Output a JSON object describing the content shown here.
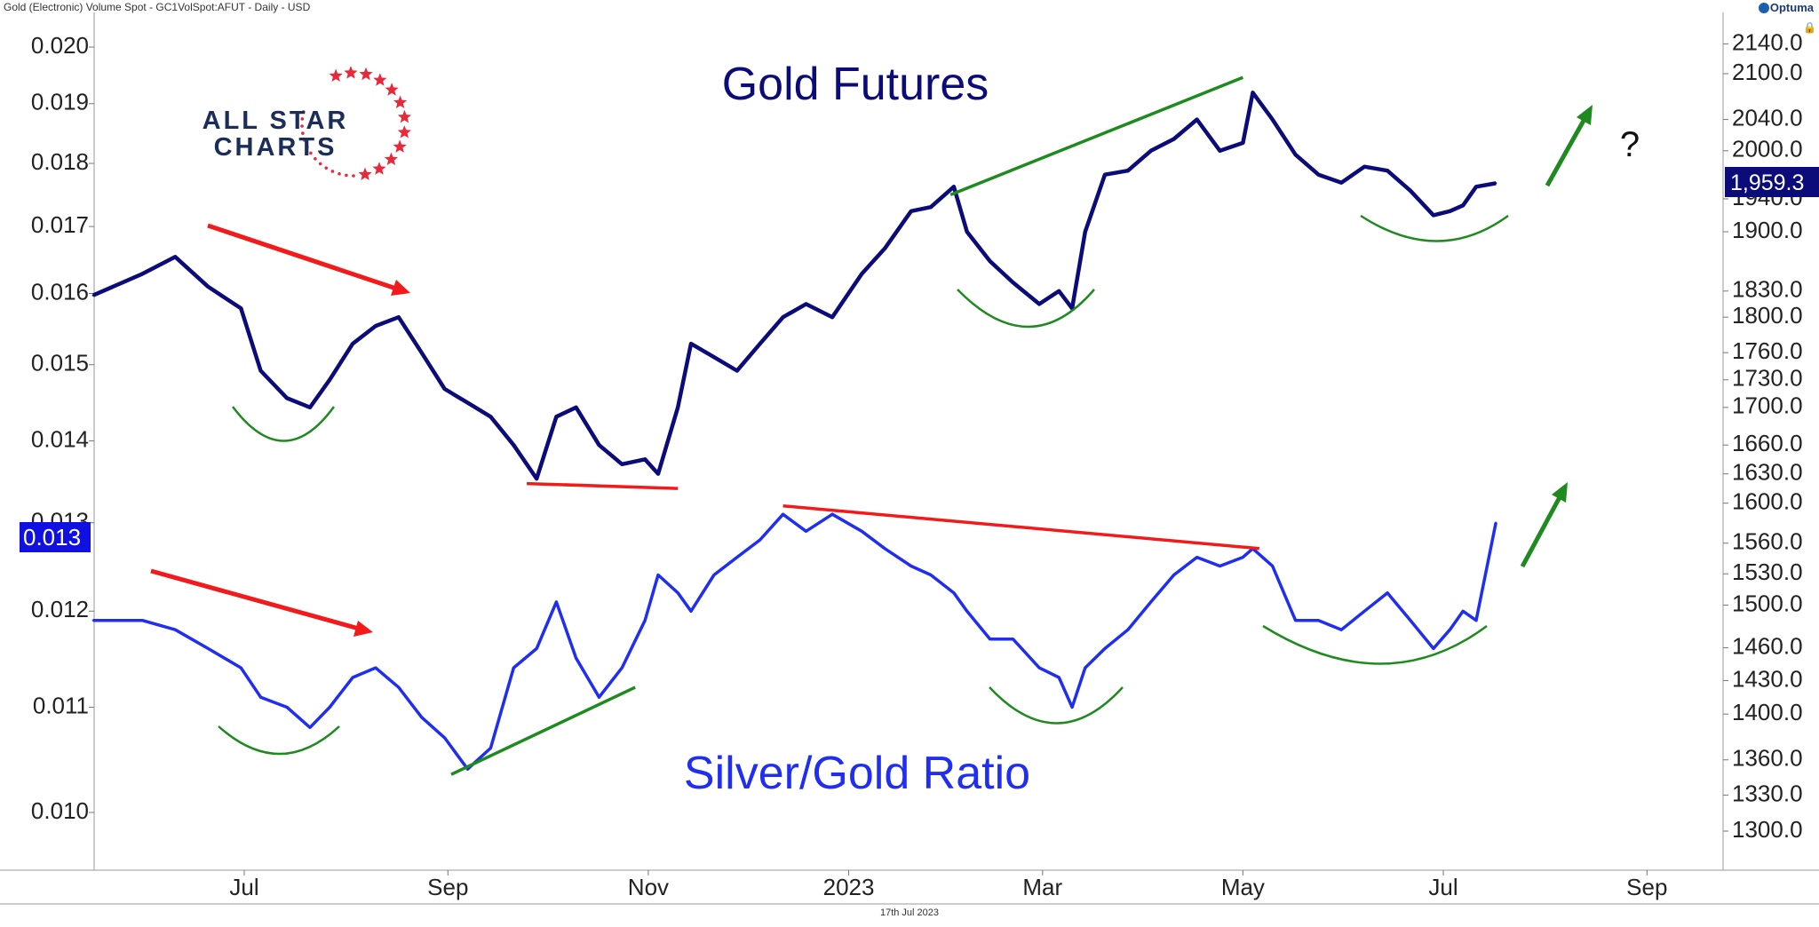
{
  "header": {
    "title": "Gold (Electronic) Volume Spot - GC1VolSpot:AFUT - Daily - USD",
    "brand": "Optuma",
    "footer_date": "17th Jul 2023"
  },
  "logo": {
    "line1": "ALL STAR",
    "line2": "CHARTS"
  },
  "colors": {
    "gold_series": "#0b0b7a",
    "ratio_series": "#1f2ef0",
    "trend_red": "#f21a1a",
    "trend_green": "#1f8a1f",
    "price_label_bg": "#0b0b7a",
    "ratio_label_bg": "#1010e0"
  },
  "annotations": {
    "gold_title": "Gold Futures",
    "ratio_title": "Silver/Gold Ratio",
    "question": "?"
  },
  "chart_data": {
    "type": "line",
    "x_axis": {
      "tick_labels": [
        "Jul",
        "Sep",
        "Nov",
        "2023",
        "Mar",
        "May",
        "Jul",
        "Sep"
      ],
      "range": [
        "2022-05-15",
        "2023-09-20"
      ]
    },
    "left_axis": {
      "scale": "log",
      "ticks": [
        0.02,
        0.019,
        0.018,
        0.017,
        0.016,
        0.015,
        0.014,
        0.013,
        0.012,
        0.011,
        0.01
      ],
      "tick_labels": [
        "0.020",
        "0.019",
        "0.018",
        "0.017",
        "0.016",
        "0.015",
        "0.014",
        "0.013",
        "0.012",
        "0.011",
        "0.010"
      ]
    },
    "right_axis": {
      "scale": "log",
      "ticks": [
        2140,
        2100,
        2040,
        2000,
        1940,
        1900,
        1830,
        1800,
        1760,
        1730,
        1700,
        1660,
        1630,
        1600,
        1560,
        1530,
        1500,
        1460,
        1430,
        1400,
        1360,
        1330,
        1300
      ],
      "tick_labels": [
        "2140.0",
        "2100.0",
        "2040.0",
        "2000.0",
        "1940.0",
        "1900.0",
        "1830.0",
        "1800.0",
        "1760.0",
        "1730.0",
        "1700.0",
        "1660.0",
        "1630.0",
        "1600.0",
        "1560.0",
        "1530.0",
        "1500.0",
        "1460.0",
        "1430.0",
        "1400.0",
        "1360.0",
        "1330.0",
        "1300.0"
      ]
    },
    "series": [
      {
        "name": "Gold Futures",
        "axis": "right",
        "points": [
          [
            "2022-05-16",
            1825
          ],
          [
            "2022-05-31",
            1850
          ],
          [
            "2022-06-10",
            1870
          ],
          [
            "2022-06-20",
            1835
          ],
          [
            "2022-06-30",
            1810
          ],
          [
            "2022-07-06",
            1740
          ],
          [
            "2022-07-14",
            1710
          ],
          [
            "2022-07-21",
            1700
          ],
          [
            "2022-07-27",
            1730
          ],
          [
            "2022-08-03",
            1770
          ],
          [
            "2022-08-10",
            1790
          ],
          [
            "2022-08-17",
            1800
          ],
          [
            "2022-08-24",
            1760
          ],
          [
            "2022-08-31",
            1720
          ],
          [
            "2022-09-07",
            1705
          ],
          [
            "2022-09-14",
            1690
          ],
          [
            "2022-09-21",
            1660
          ],
          [
            "2022-09-28",
            1625
          ],
          [
            "2022-10-04",
            1690
          ],
          [
            "2022-10-10",
            1700
          ],
          [
            "2022-10-17",
            1660
          ],
          [
            "2022-10-24",
            1640
          ],
          [
            "2022-10-31",
            1645
          ],
          [
            "2022-11-04",
            1630
          ],
          [
            "2022-11-10",
            1700
          ],
          [
            "2022-11-14",
            1770
          ],
          [
            "2022-11-21",
            1755
          ],
          [
            "2022-11-28",
            1740
          ],
          [
            "2022-12-05",
            1770
          ],
          [
            "2022-12-12",
            1800
          ],
          [
            "2022-12-19",
            1815
          ],
          [
            "2022-12-27",
            1800
          ],
          [
            "2023-01-05",
            1850
          ],
          [
            "2023-01-12",
            1880
          ],
          [
            "2023-01-20",
            1925
          ],
          [
            "2023-01-26",
            1930
          ],
          [
            "2023-02-02",
            1955
          ],
          [
            "2023-02-06",
            1900
          ],
          [
            "2023-02-13",
            1865
          ],
          [
            "2023-02-20",
            1840
          ],
          [
            "2023-02-28",
            1815
          ],
          [
            "2023-03-06",
            1830
          ],
          [
            "2023-03-10",
            1810
          ],
          [
            "2023-03-14",
            1900
          ],
          [
            "2023-03-20",
            1970
          ],
          [
            "2023-03-27",
            1975
          ],
          [
            "2023-04-03",
            2000
          ],
          [
            "2023-04-10",
            2015
          ],
          [
            "2023-04-17",
            2040
          ],
          [
            "2023-04-24",
            2000
          ],
          [
            "2023-05-01",
            2010
          ],
          [
            "2023-05-04",
            2075
          ],
          [
            "2023-05-10",
            2040
          ],
          [
            "2023-05-17",
            1995
          ],
          [
            "2023-05-24",
            1970
          ],
          [
            "2023-05-31",
            1960
          ],
          [
            "2023-06-07",
            1980
          ],
          [
            "2023-06-14",
            1975
          ],
          [
            "2023-06-21",
            1950
          ],
          [
            "2023-06-28",
            1920
          ],
          [
            "2023-07-03",
            1925
          ],
          [
            "2023-07-07",
            1932
          ],
          [
            "2023-07-11",
            1955
          ],
          [
            "2023-07-17",
            1959.3
          ]
        ]
      },
      {
        "name": "Silver/Gold Ratio",
        "axis": "left",
        "points": [
          [
            "2022-05-16",
            0.0119
          ],
          [
            "2022-05-31",
            0.0119
          ],
          [
            "2022-06-10",
            0.0118
          ],
          [
            "2022-06-20",
            0.0116
          ],
          [
            "2022-06-30",
            0.0114
          ],
          [
            "2022-07-06",
            0.0111
          ],
          [
            "2022-07-14",
            0.011
          ],
          [
            "2022-07-21",
            0.0108
          ],
          [
            "2022-07-27",
            0.011
          ],
          [
            "2022-08-03",
            0.0113
          ],
          [
            "2022-08-10",
            0.0114
          ],
          [
            "2022-08-17",
            0.0112
          ],
          [
            "2022-08-24",
            0.0109
          ],
          [
            "2022-08-31",
            0.0107
          ],
          [
            "2022-09-07",
            0.0104
          ],
          [
            "2022-09-14",
            0.0106
          ],
          [
            "2022-09-21",
            0.0114
          ],
          [
            "2022-09-28",
            0.0116
          ],
          [
            "2022-10-04",
            0.0121
          ],
          [
            "2022-10-10",
            0.0115
          ],
          [
            "2022-10-17",
            0.0111
          ],
          [
            "2022-10-24",
            0.0114
          ],
          [
            "2022-10-31",
            0.0119
          ],
          [
            "2022-11-04",
            0.0124
          ],
          [
            "2022-11-10",
            0.0122
          ],
          [
            "2022-11-14",
            0.012
          ],
          [
            "2022-11-21",
            0.0124
          ],
          [
            "2022-11-28",
            0.0126
          ],
          [
            "2022-12-05",
            0.0128
          ],
          [
            "2022-12-12",
            0.0131
          ],
          [
            "2022-12-19",
            0.0129
          ],
          [
            "2022-12-27",
            0.0131
          ],
          [
            "2023-01-05",
            0.0129
          ],
          [
            "2023-01-12",
            0.0127
          ],
          [
            "2023-01-20",
            0.0125
          ],
          [
            "2023-01-26",
            0.0124
          ],
          [
            "2023-02-02",
            0.0122
          ],
          [
            "2023-02-06",
            0.012
          ],
          [
            "2023-02-13",
            0.0117
          ],
          [
            "2023-02-20",
            0.0117
          ],
          [
            "2023-02-28",
            0.0114
          ],
          [
            "2023-03-06",
            0.0113
          ],
          [
            "2023-03-10",
            0.011
          ],
          [
            "2023-03-14",
            0.0114
          ],
          [
            "2023-03-20",
            0.0116
          ],
          [
            "2023-03-27",
            0.0118
          ],
          [
            "2023-04-03",
            0.0121
          ],
          [
            "2023-04-10",
            0.0124
          ],
          [
            "2023-04-17",
            0.0126
          ],
          [
            "2023-04-24",
            0.0125
          ],
          [
            "2023-05-01",
            0.0126
          ],
          [
            "2023-05-04",
            0.0127
          ],
          [
            "2023-05-10",
            0.0125
          ],
          [
            "2023-05-17",
            0.0119
          ],
          [
            "2023-05-24",
            0.0119
          ],
          [
            "2023-05-31",
            0.0118
          ],
          [
            "2023-06-07",
            0.012
          ],
          [
            "2023-06-14",
            0.0122
          ],
          [
            "2023-06-21",
            0.0119
          ],
          [
            "2023-06-28",
            0.0116
          ],
          [
            "2023-07-03",
            0.0118
          ],
          [
            "2023-07-07",
            0.012
          ],
          [
            "2023-07-11",
            0.0119
          ],
          [
            "2023-07-17",
            0.013
          ]
        ]
      }
    ],
    "last_values": {
      "gold_label": "1,959.3",
      "ratio_label": "0.013"
    },
    "trend_lines": [
      {
        "series": "Gold Futures",
        "color": "green",
        "from": [
          "2023-02-01",
          1945
        ],
        "to": [
          "2023-05-01",
          2095
        ]
      },
      {
        "series": "Gold Futures",
        "color": "red",
        "from": [
          "2022-09-25",
          1620
        ],
        "to": [
          "2022-11-10",
          1615
        ]
      },
      {
        "series": "Silver/Gold Ratio",
        "color": "red",
        "from": [
          "2022-12-12",
          0.0132
        ],
        "to": [
          "2023-05-06",
          0.0127
        ]
      },
      {
        "series": "Silver/Gold Ratio",
        "color": "green",
        "from": [
          "2022-09-02",
          0.01035
        ],
        "to": [
          "2022-10-28",
          0.0112
        ]
      }
    ],
    "grid": false,
    "legend": "none"
  }
}
